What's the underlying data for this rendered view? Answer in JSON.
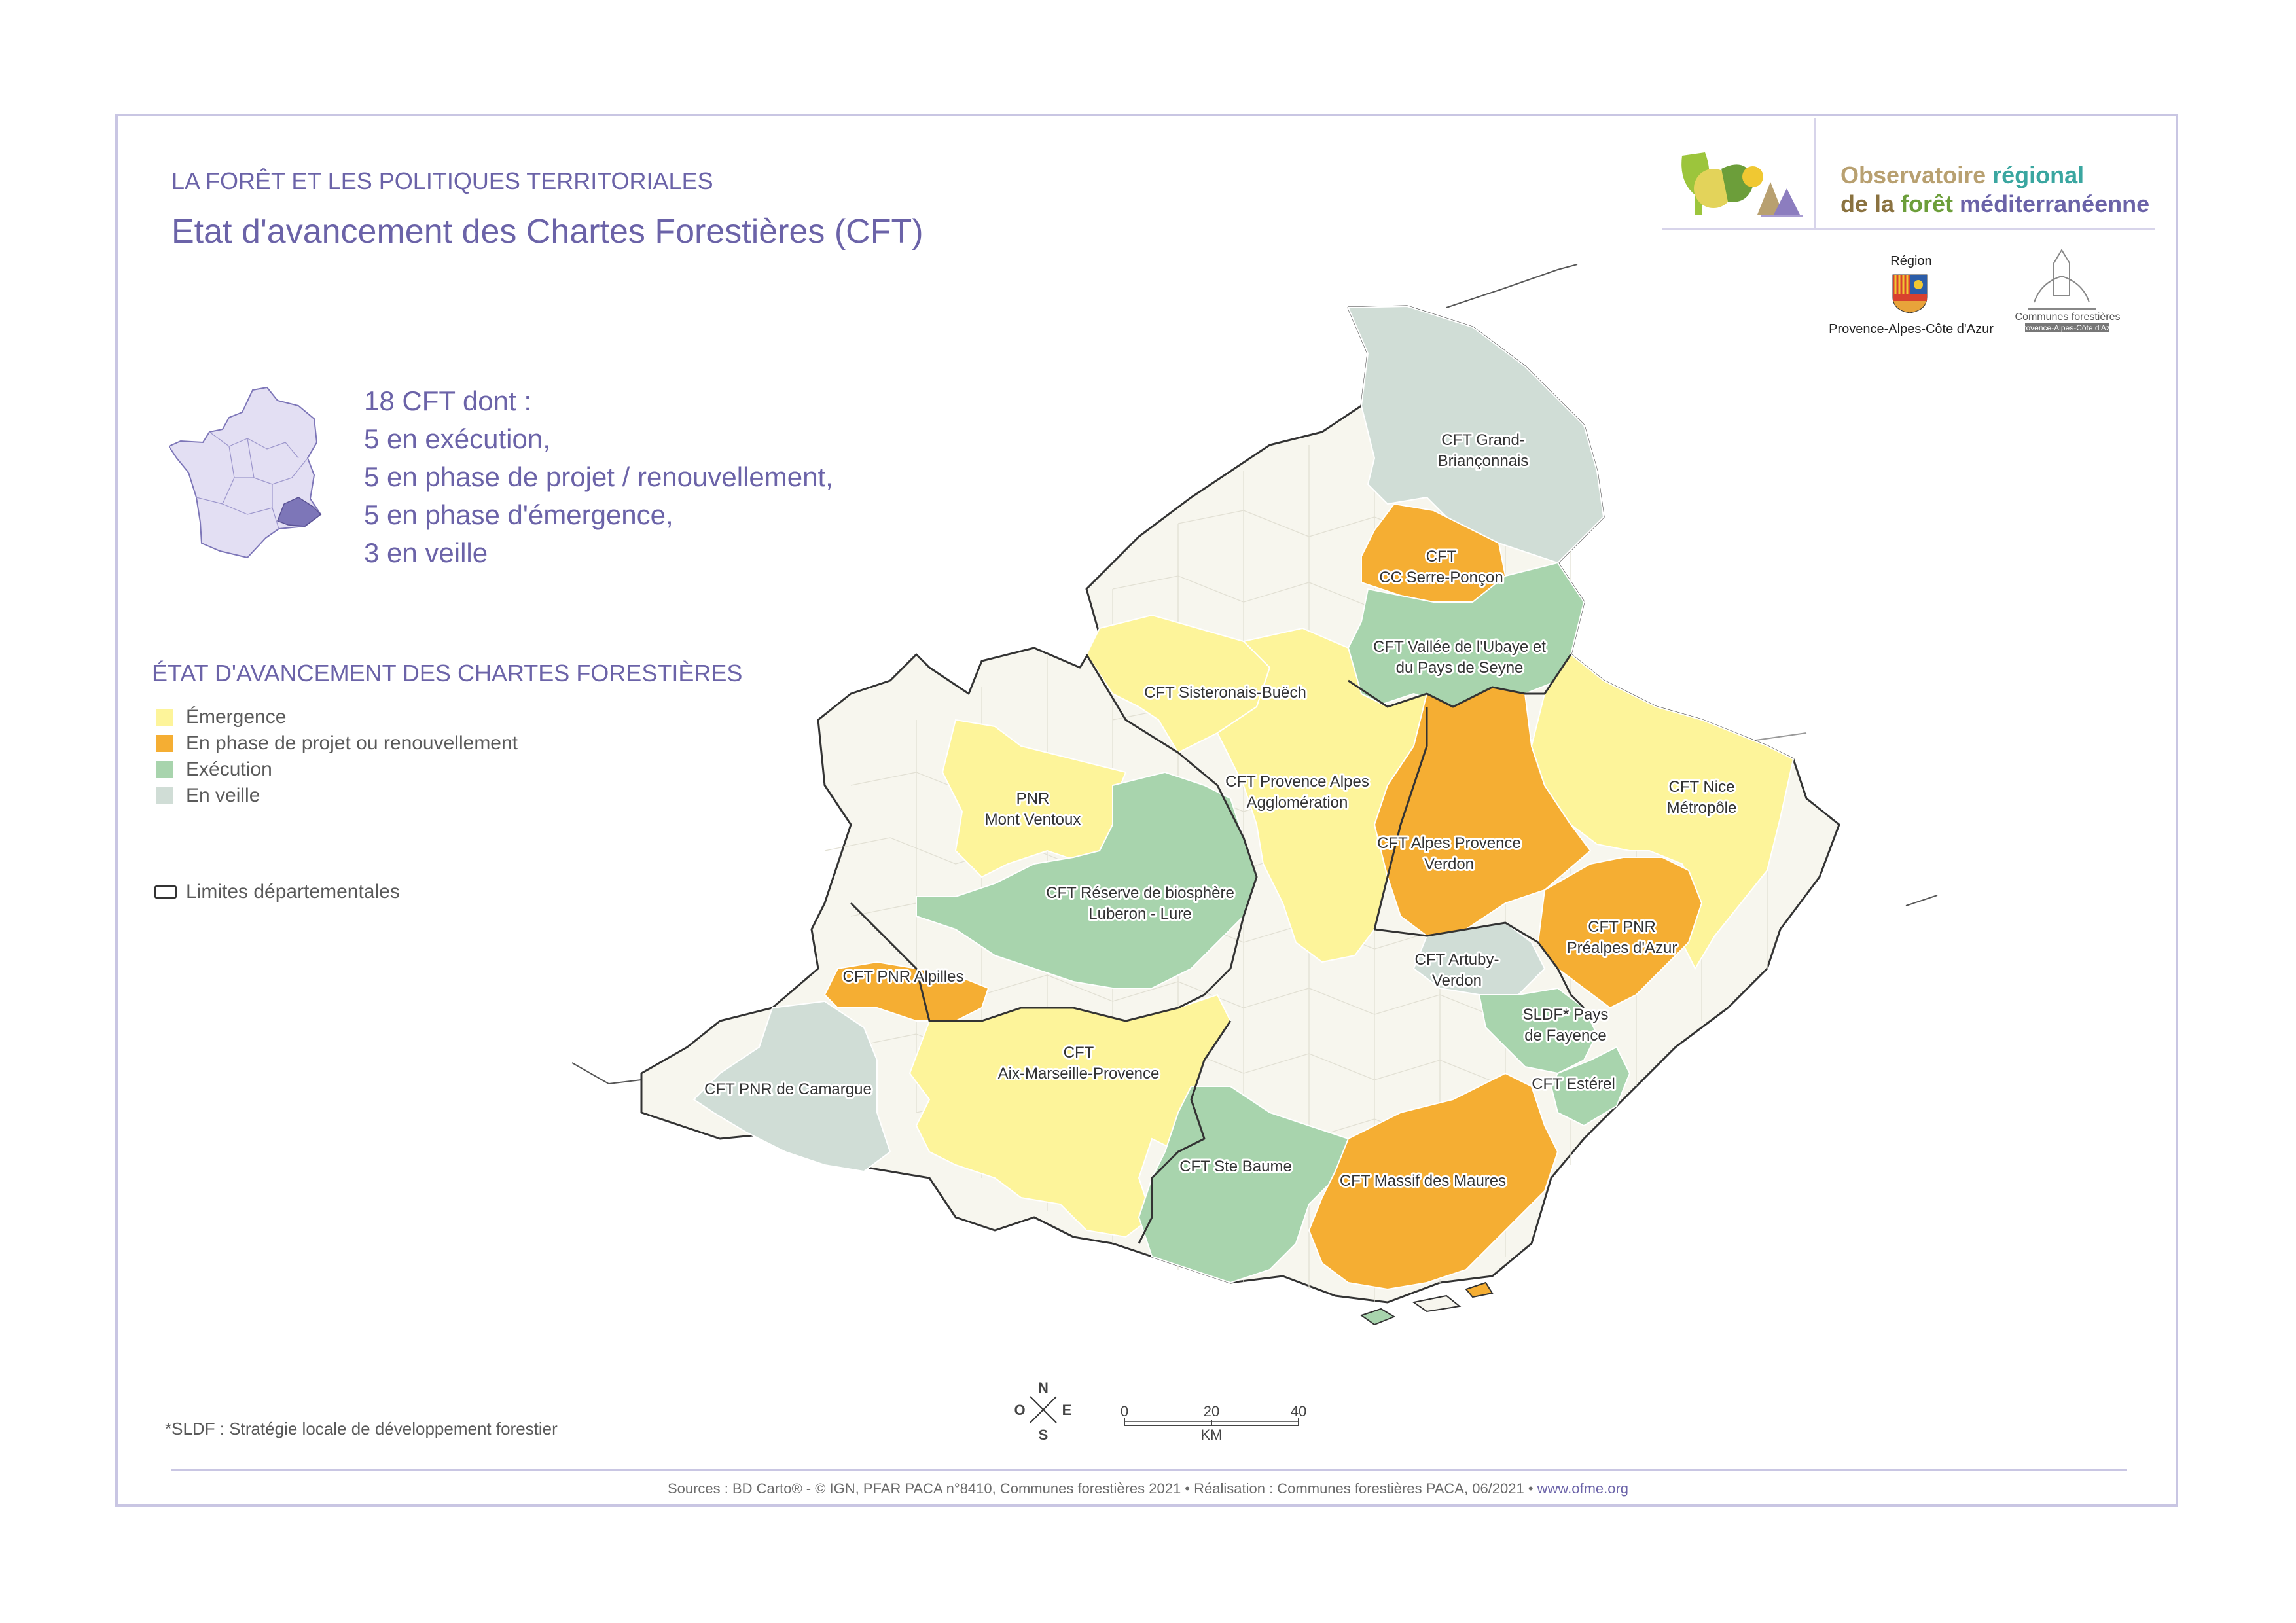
{
  "header": {
    "subtitle": "LA FORÊT ET LES POLITIQUES TERRITORIALES",
    "title": "Etat d'avancement des Chartes Forestières (CFT)"
  },
  "summary": {
    "lines": [
      "18 CFT dont :",
      "5 en exécution,",
      "5 en phase de projet / renouvellement,",
      "5 en phase d'émergence,",
      "3 en veille"
    ]
  },
  "legend": {
    "title": "ÉTAT D'AVANCEMENT DES CHARTES FORESTIÈRES",
    "items": [
      {
        "label": "Émergence",
        "color": "#fdf49a"
      },
      {
        "label": "En phase de projet ou renouvellement",
        "color": "#f5ae33"
      },
      {
        "label": "Exécution",
        "color": "#a8d4ad"
      },
      {
        "label": "En veille",
        "color": "#d0ddd6"
      }
    ],
    "limits_label": "Limites départementales"
  },
  "colors": {
    "emergence": "#fdf49a",
    "projet": "#f5ae33",
    "execution": "#a8d4ad",
    "veille": "#d0ddd6",
    "none": "#f7f6ee",
    "accent": "#6b63a8"
  },
  "regions": [
    {
      "name": "CFT Grand-Briançonnais",
      "lines": [
        "CFT Grand-",
        "Briançonnais"
      ],
      "status": "veille"
    },
    {
      "name": "CFT CC Serre-Ponçon",
      "lines": [
        "CFT",
        "CC Serre-Ponçon"
      ],
      "status": "projet"
    },
    {
      "name": "CFT Vallée de l'Ubaye et du Pays de Seyne",
      "lines": [
        "CFT Vallée de l'Ubaye et",
        "du Pays de Seyne"
      ],
      "status": "execution"
    },
    {
      "name": "CFT Sisteronais-Buëch",
      "lines": [
        "CFT Sisteronais-Buëch"
      ],
      "status": "emergence"
    },
    {
      "name": "CFT Provence Alpes Agglomération",
      "lines": [
        "CFT Provence Alpes",
        "Agglomération"
      ],
      "status": "emergence"
    },
    {
      "name": "CFT Alpes Provence Verdon",
      "lines": [
        "CFT Alpes Provence",
        "Verdon"
      ],
      "status": "projet"
    },
    {
      "name": "CFT Nice Métropôle",
      "lines": [
        "CFT Nice",
        "Métropôle"
      ],
      "status": "emergence"
    },
    {
      "name": "PNR Mont Ventoux",
      "lines": [
        "PNR",
        "Mont Ventoux"
      ],
      "status": "emergence"
    },
    {
      "name": "CFT Réserve de biosphère Luberon - Lure",
      "lines": [
        "CFT Réserve de biosphère",
        "Luberon - Lure"
      ],
      "status": "execution"
    },
    {
      "name": "CFT PNR Préalpes d'Azur",
      "lines": [
        "CFT PNR",
        "Préalpes d'Azur"
      ],
      "status": "projet"
    },
    {
      "name": "CFT Artuby-Verdon",
      "lines": [
        "CFT Artuby-",
        "Verdon"
      ],
      "status": "veille"
    },
    {
      "name": "CFT PNR Alpilles",
      "lines": [
        "CFT PNR Alpilles"
      ],
      "status": "projet"
    },
    {
      "name": "SLDF* Pays de Fayence",
      "lines": [
        "SLDF* Pays",
        "de Fayence"
      ],
      "status": "execution"
    },
    {
      "name": "CFT Aix-Marseille-Provence",
      "lines": [
        "CFT",
        "Aix-Marseille-Provence"
      ],
      "status": "emergence"
    },
    {
      "name": "CFT PNR de Camargue",
      "lines": [
        "CFT PNR de Camargue"
      ],
      "status": "veille"
    },
    {
      "name": "CFT Estérel",
      "lines": [
        "CFT Estérel"
      ],
      "status": "execution"
    },
    {
      "name": "CFT Ste Baume",
      "lines": [
        "CFT Ste Baume"
      ],
      "status": "execution"
    },
    {
      "name": "CFT Massif des Maures",
      "lines": [
        "CFT Massif des Maures"
      ],
      "status": "projet"
    }
  ],
  "compass": {
    "n": "N",
    "s": "S",
    "e": "E",
    "o": "O"
  },
  "scale": {
    "ticks": [
      "0",
      "20",
      "40"
    ],
    "unit": "KM"
  },
  "footnote": "*SLDF : Stratégie locale de développement forestier",
  "sources": {
    "text": "Sources : BD Carto® - © IGN, PFAR PACA n°8410, Communes forestières 2021 • Réalisation : Communes forestières PACA, 06/2021 • ",
    "url": "www.ofme.org"
  },
  "logos": {
    "ofme_line1a": "Observatoire ",
    "ofme_line1b": "régional",
    "ofme_line2a": "de la ",
    "ofme_line2b": "forêt ",
    "ofme_line2c": "méditerranéenne",
    "region_small": "Région",
    "region_name": "Provence-Alpes-Côte d'Azur",
    "cf_line1": "Communes forestières",
    "cf_line2": "Provence-Alpes-Côte d'Azur"
  }
}
